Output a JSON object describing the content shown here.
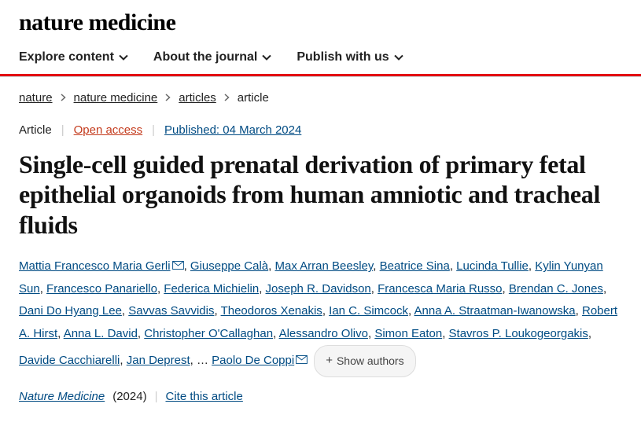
{
  "logo": "nature medicine",
  "nav": {
    "items": [
      {
        "label": "Explore content"
      },
      {
        "label": "About the journal"
      },
      {
        "label": "Publish with us"
      }
    ]
  },
  "breadcrumb": {
    "items": [
      {
        "label": "nature",
        "link": true
      },
      {
        "label": "nature medicine",
        "link": true
      },
      {
        "label": "articles",
        "link": true
      },
      {
        "label": "article",
        "link": false
      }
    ]
  },
  "meta": {
    "article_type": "Article",
    "open_access": "Open access",
    "pub_date": "Published: 04 March 2024"
  },
  "title": "Single-cell guided prenatal derivation of primary fetal epithelial organoids from human amniotic and tracheal fluids",
  "authors": {
    "list": [
      {
        "name": "Mattia Francesco Maria Gerli",
        "mail": true
      },
      {
        "name": "Giuseppe Calà"
      },
      {
        "name": "Max Arran Beesley"
      },
      {
        "name": "Beatrice Sina"
      },
      {
        "name": "Lucinda Tullie"
      },
      {
        "name": "Kylin Yunyan Sun"
      },
      {
        "name": "Francesco Panariello"
      },
      {
        "name": "Federica Michielin"
      },
      {
        "name": "Joseph R. Davidson"
      },
      {
        "name": "Francesca Maria Russo"
      },
      {
        "name": "Brendan C. Jones"
      },
      {
        "name": "Dani Do Hyang Lee"
      },
      {
        "name": "Savvas Savvidis"
      },
      {
        "name": "Theodoros Xenakis"
      },
      {
        "name": "Ian C. Simcock"
      },
      {
        "name": "Anna A. Straatman-Iwanowska"
      },
      {
        "name": "Robert A. Hirst"
      },
      {
        "name": "Anna L. David"
      },
      {
        "name": "Christopher O'Callaghan"
      },
      {
        "name": "Alessandro Olivo"
      },
      {
        "name": "Simon Eaton"
      },
      {
        "name": "Stavros P. Loukogeorgakis"
      },
      {
        "name": "Davide Cacchiarelli"
      },
      {
        "name": "Jan Deprest"
      }
    ],
    "ellipsis": "…",
    "last": {
      "name": "Paolo De Coppi",
      "mail": true
    },
    "show_authors": "Show authors"
  },
  "journal": {
    "name": "Nature Medicine",
    "year": "(2024)",
    "cite": "Cite this article"
  },
  "colors": {
    "red": "#e30613",
    "link_blue": "#004b83",
    "open_access": "#c43b1d"
  }
}
